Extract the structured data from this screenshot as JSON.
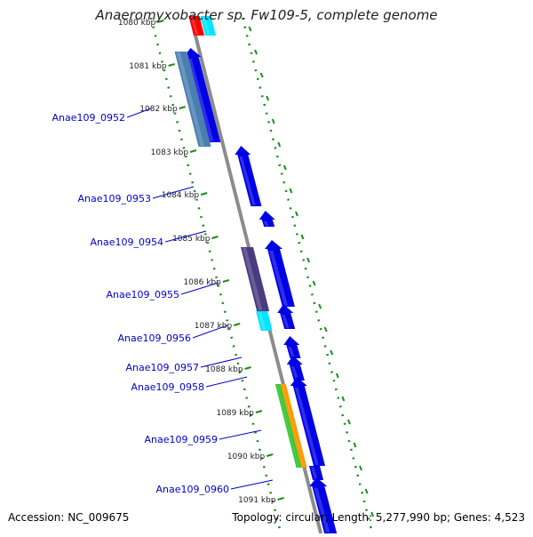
{
  "title": "Anaeromyxobacter sp. Fw109-5, complete genome",
  "footer": {
    "accession": "Accession: NC_009675",
    "summary": "Topology: circular; Length: 5,277,990 bp; Genes: 4,523"
  },
  "ticks": [
    {
      "label": "1080 kbp"
    },
    {
      "label": "1081 kbp"
    },
    {
      "label": "1082 kbp"
    },
    {
      "label": "1083 kbp"
    },
    {
      "label": "1084 kbp"
    },
    {
      "label": "1085 kbp"
    },
    {
      "label": "1086 kbp"
    },
    {
      "label": "1087 kbp"
    },
    {
      "label": "1088 kbp"
    },
    {
      "label": "1089 kbp"
    },
    {
      "label": "1090 kbp"
    },
    {
      "label": "1091 kbp"
    }
  ],
  "genes": [
    {
      "label": "Anae109_0952"
    },
    {
      "label": "Anae109_0953"
    },
    {
      "label": "Anae109_0954"
    },
    {
      "label": "Anae109_0955"
    },
    {
      "label": "Anae109_0956"
    },
    {
      "label": "Anae109_0957"
    },
    {
      "label": "Anae109_0958"
    },
    {
      "label": "Anae109_0959"
    },
    {
      "label": "Anae109_0960"
    }
  ],
  "colors": {
    "cds": "#0000e6",
    "ring_line": "#8c8c8c",
    "dots": "#1a8c1a",
    "label": "#0000cc",
    "red": "#ff0000",
    "cyan": "#00e5ff",
    "steel": "#4a7fb0",
    "slate": "#4a3a80",
    "green": "#3cc83c",
    "orange": "#ff9900"
  }
}
